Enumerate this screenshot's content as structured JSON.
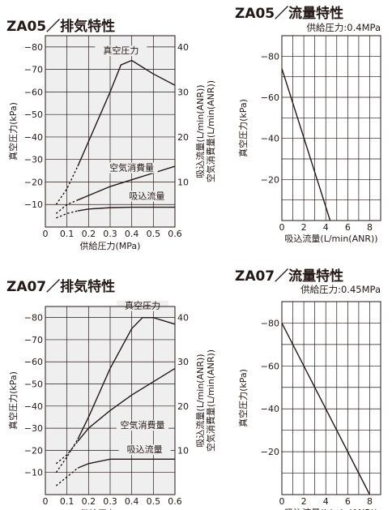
{
  "chart_data": [
    {
      "id": "za05_exhaust",
      "type": "line",
      "title": "ZA05／排気特性",
      "xlabel": "供給圧力(MPa)",
      "ylabel": "真空圧力(kPa)",
      "ylabel_right": [
        "吸込流量(L/min(ANR))",
        "空気消費量(L/min(ANR))"
      ],
      "x_ticks": [
        "0",
        "0.1",
        "0.2",
        "0.3",
        "0.4",
        "0.5",
        "0.6"
      ],
      "y_ticks": [
        "−80",
        "−70",
        "−60",
        "−50",
        "−40",
        "−30",
        "−20",
        "−10"
      ],
      "y2_ticks": [
        "40",
        "30",
        "20",
        "10"
      ],
      "xlim": [
        0,
        0.6
      ],
      "ylim": [
        0,
        -85
      ],
      "y2lim": [
        0,
        42.5
      ],
      "grid": true,
      "shaded_background": true,
      "series": [
        {
          "name": "真空圧力",
          "axis": "left",
          "dashed": [
            [
              0.05,
              -10
            ],
            [
              0.1,
              -17
            ],
            [
              0.15,
              -27
            ]
          ],
          "solid": [
            [
              0.15,
              -27
            ],
            [
              0.2,
              -38
            ],
            [
              0.25,
              -49
            ],
            [
              0.3,
              -60
            ],
            [
              0.35,
              -72
            ],
            [
              0.4,
              -74
            ],
            [
              0.45,
              -71
            ],
            [
              0.5,
              -68
            ],
            [
              0.6,
              -63
            ]
          ]
        },
        {
          "name": "空気消費量",
          "axis": "right",
          "dashed": [
            [
              0.05,
              3
            ],
            [
              0.1,
              5
            ],
            [
              0.15,
              6
            ]
          ],
          "solid": [
            [
              0.15,
              6
            ],
            [
              0.2,
              7
            ],
            [
              0.3,
              9
            ],
            [
              0.4,
              10.5
            ],
            [
              0.5,
              12
            ],
            [
              0.6,
              13.5
            ]
          ]
        },
        {
          "name": "吸込流量",
          "axis": "right",
          "dashed": [
            [
              0.05,
              2
            ],
            [
              0.1,
              3
            ],
            [
              0.15,
              3.6
            ]
          ],
          "solid": [
            [
              0.15,
              3.6
            ],
            [
              0.2,
              4
            ],
            [
              0.3,
              4.3
            ],
            [
              0.4,
              4.4
            ],
            [
              0.6,
              4.4
            ]
          ]
        }
      ]
    },
    {
      "id": "za05_flow",
      "type": "line",
      "title": "ZA05／流量特性",
      "subtitle": "供給圧力:0.4MPa",
      "xlabel": "吸込流量(L/min(ANR))",
      "ylabel": "真空圧力(kPa)",
      "x_ticks": [
        "0",
        "2",
        "4",
        "6",
        "8"
      ],
      "y_ticks": [
        "−80",
        "−60",
        "−40",
        "−20"
      ],
      "xlim": [
        0,
        9
      ],
      "ylim": [
        0,
        -90
      ],
      "grid": true,
      "series": [
        {
          "solid": [
            [
              0,
              -74
            ],
            [
              4.4,
              0
            ]
          ]
        }
      ]
    },
    {
      "id": "za07_exhaust",
      "type": "line",
      "title": "ZA07／排気特性",
      "xlabel": "供給圧力(MPa)",
      "ylabel": "真空圧力(kPa)",
      "ylabel_right": [
        "吸込流量(L/min(ANR))",
        "空気消費量(L/min(ANR))"
      ],
      "x_ticks": [
        "0",
        "0.1",
        "0.2",
        "0.3",
        "0.4",
        "0.5",
        "0.6"
      ],
      "y_ticks": [
        "−80",
        "−70",
        "−60",
        "−50",
        "−40",
        "−30",
        "−20",
        "−10"
      ],
      "y2_ticks": [
        "40",
        "30",
        "20",
        "10"
      ],
      "xlim": [
        0,
        0.6
      ],
      "ylim": [
        0,
        -85
      ],
      "y2lim": [
        0,
        42.5
      ],
      "grid": true,
      "shaded_background": true,
      "series": [
        {
          "name": "真空圧力",
          "axis": "left",
          "dashed": [
            [
              0.05,
              -10
            ],
            [
              0.1,
              -17
            ],
            [
              0.15,
              -25
            ]
          ],
          "solid": [
            [
              0.15,
              -25
            ],
            [
              0.2,
              -35
            ],
            [
              0.3,
              -57
            ],
            [
              0.4,
              -75
            ],
            [
              0.45,
              -80
            ],
            [
              0.5,
              -80
            ],
            [
              0.6,
              -77
            ]
          ]
        },
        {
          "name": "空気消費量",
          "axis": "right",
          "dashed": [
            [
              0.05,
              7
            ],
            [
              0.1,
              9
            ],
            [
              0.15,
              12
            ]
          ],
          "solid": [
            [
              0.15,
              12
            ],
            [
              0.2,
              15
            ],
            [
              0.3,
              19
            ],
            [
              0.4,
              22.5
            ],
            [
              0.5,
              25.5
            ],
            [
              0.6,
              28.5
            ]
          ]
        },
        {
          "name": "吸込流量",
          "axis": "right",
          "dashed": [
            [
              0.05,
              2
            ],
            [
              0.1,
              4
            ],
            [
              0.15,
              6
            ]
          ],
          "solid": [
            [
              0.15,
              6
            ],
            [
              0.2,
              7
            ],
            [
              0.3,
              8
            ],
            [
              0.4,
              8
            ],
            [
              0.6,
              8
            ]
          ]
        }
      ]
    },
    {
      "id": "za07_flow",
      "type": "line",
      "title": "ZA07／流量特性",
      "subtitle": "供給圧力:0.45MPa",
      "xlabel": "吸込流量(L/min(ANR))",
      "ylabel": "真空圧力(kPa)",
      "x_ticks": [
        "0",
        "2",
        "4",
        "6",
        "8"
      ],
      "y_ticks": [
        "−80",
        "−60",
        "−40",
        "−20"
      ],
      "xlim": [
        0,
        9
      ],
      "ylim": [
        0,
        -90
      ],
      "grid": true,
      "series": [
        {
          "solid": [
            [
              0,
              -80
            ],
            [
              8,
              0
            ]
          ]
        }
      ]
    }
  ],
  "colors": {
    "ink": "#231815",
    "panel_fill": "#efefef",
    "background": "#ffffff"
  }
}
